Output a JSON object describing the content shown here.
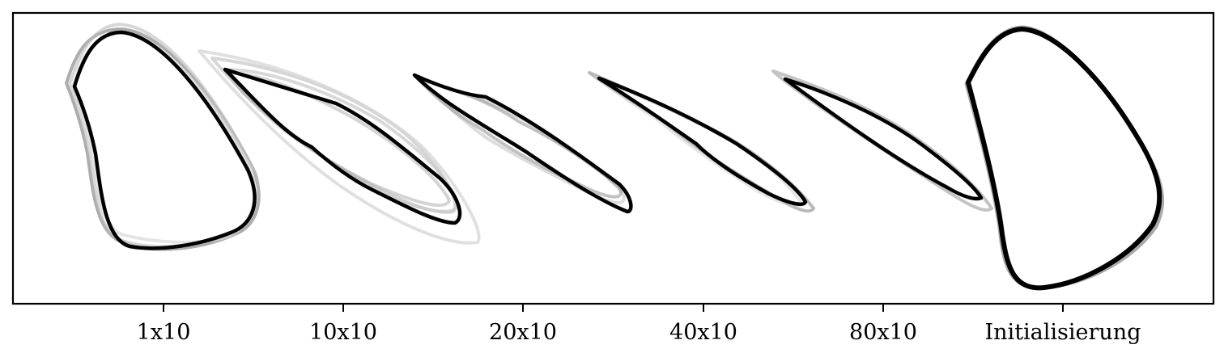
{
  "figure": {
    "groups": [
      {
        "label": "1x10"
      },
      {
        "label": "10x10"
      },
      {
        "label": "20x10"
      },
      {
        "label": "40x10"
      },
      {
        "label": "80x10"
      },
      {
        "label": "Initialisierung"
      }
    ],
    "colors": {
      "final_shape": "#000000",
      "ghost_shape_dark": "#8a8a8a",
      "ghost_shape_light": "#d9d9d9",
      "frame": "#000000"
    }
  }
}
